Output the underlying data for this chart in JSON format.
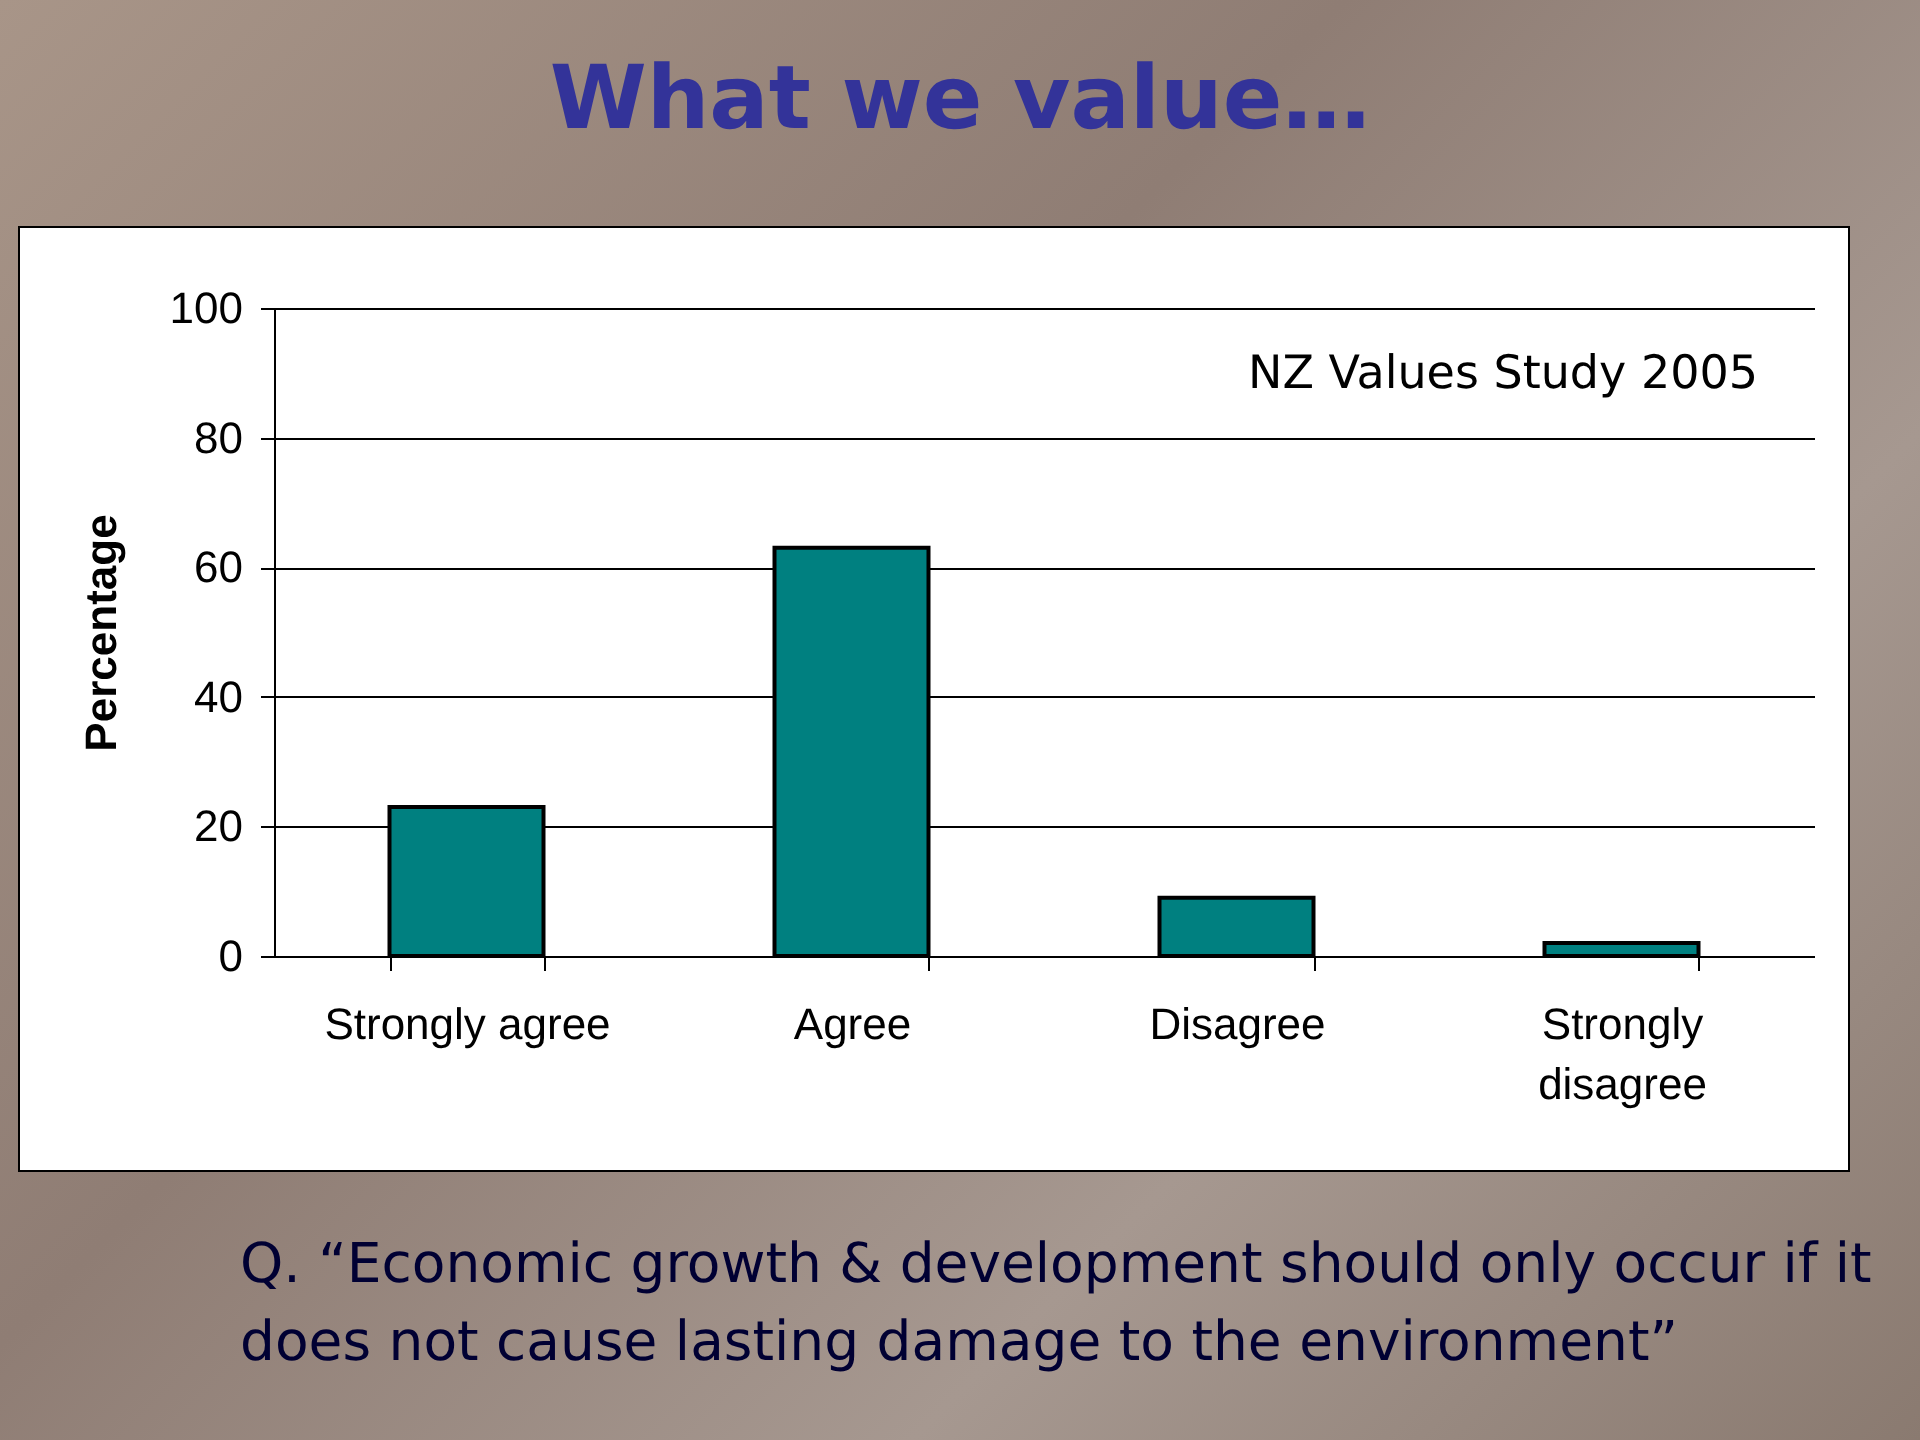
{
  "chart_data": {
    "type": "bar",
    "title": "What we value…",
    "ylabel": "Percentage",
    "categories": [
      "Strongly agree",
      "Agree",
      "Disagree",
      "Strongly disagree"
    ],
    "values": [
      23,
      63,
      9,
      2
    ],
    "color": "#008080",
    "ylim": [
      0,
      100
    ],
    "yticks": [
      0,
      20,
      40,
      60,
      80,
      100
    ],
    "grid": "y",
    "annotations": [
      "NZ Values Study 2005",
      "Q. “Economic growth & development should only occur if it does not cause lasting damage to the environment”"
    ]
  }
}
